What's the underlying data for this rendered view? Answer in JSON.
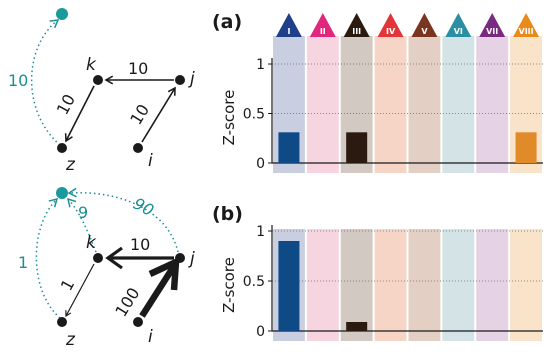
{
  "panels": [
    {
      "label": "(a)",
      "graph": {
        "nodes": [
          "k",
          "j",
          "z",
          "i"
        ],
        "edges": [
          {
            "from": "j",
            "to": "k",
            "label": "10",
            "color": "#1a1a1a"
          },
          {
            "from": "k",
            "to": "z",
            "label": "10",
            "color": "#1a1a1a"
          },
          {
            "from": "i",
            "to": "j",
            "label": "10",
            "color": "#1a1a1a"
          },
          {
            "from": "z",
            "to": "external",
            "label": "10",
            "color": "#1a8f96"
          }
        ]
      }
    },
    {
      "label": "(b)",
      "graph": {
        "nodes": [
          "k",
          "j",
          "z",
          "i"
        ],
        "edges": [
          {
            "from": "j",
            "to": "k",
            "label": "10",
            "color": "#1a1a1a"
          },
          {
            "from": "k",
            "to": "z",
            "label": "1",
            "color": "#1a1a1a"
          },
          {
            "from": "i",
            "to": "j",
            "label": "100",
            "color": "#1a1a1a"
          },
          {
            "from": "k",
            "to": "external",
            "label": "9",
            "color": "#1a8f96"
          },
          {
            "from": "j",
            "to": "external",
            "label": "90",
            "color": "#1a8f96"
          },
          {
            "from": "z",
            "to": "external",
            "label": "1",
            "color": "#1a8f96"
          }
        ]
      }
    }
  ],
  "chart_data": [
    {
      "type": "bar",
      "title": "(a)",
      "ylabel": "Z-score",
      "ylim": [
        0,
        1
      ],
      "yticks": [
        "0",
        "0.5",
        "1"
      ],
      "categories": [
        "I",
        "II",
        "III",
        "IV",
        "V",
        "VI",
        "VII",
        "VIII"
      ],
      "category_colors": [
        "#1f3f8a",
        "#e0267d",
        "#2b1a10",
        "#e2353a",
        "#7a3520",
        "#2b8fa3",
        "#7a2a80",
        "#e88a1c"
      ],
      "values": [
        0.31,
        0.0,
        0.31,
        0.0,
        0.0,
        0.0,
        0.0,
        0.31
      ],
      "bar_colors": [
        "#0e4a86",
        "#e0267d",
        "#2b1a10",
        "#e2353a",
        "#7a3520",
        "#2b8fa3",
        "#7a2a80",
        "#e08a2a"
      ],
      "band_colors": [
        "#c9cfe0",
        "#f6d5e1",
        "#d3c9c3",
        "#f6d5c6",
        "#e3cfc3",
        "#d3e3e6",
        "#e5d2e4",
        "#f9e3c9"
      ]
    },
    {
      "type": "bar",
      "title": "(b)",
      "ylabel": "Z-score",
      "ylim": [
        0,
        1
      ],
      "yticks": [
        "0",
        "0.5",
        "1"
      ],
      "categories": [
        "I",
        "II",
        "III",
        "IV",
        "V",
        "VI",
        "VII",
        "VIII"
      ],
      "values": [
        0.9,
        0.0,
        0.09,
        0.0,
        0.0,
        0.0,
        0.0,
        0.0
      ],
      "bar_colors": [
        "#0e4a86",
        "#e0267d",
        "#2b1a10",
        "#e2353a",
        "#7a3520",
        "#2b8fa3",
        "#7a2a80",
        "#e08a2a"
      ],
      "band_colors": [
        "#c9cfe0",
        "#f6d5e1",
        "#d3c9c3",
        "#f6d5c6",
        "#e3cfc3",
        "#d3e3e6",
        "#e5d2e4",
        "#f9e3c9"
      ]
    }
  ]
}
